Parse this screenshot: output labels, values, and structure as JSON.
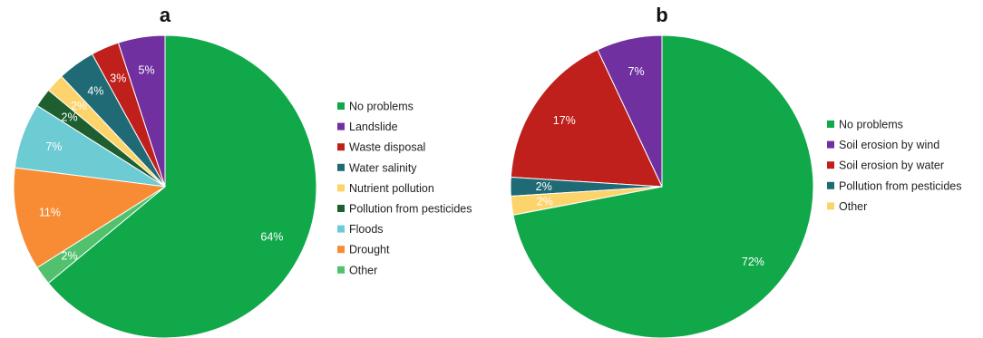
{
  "chart_data": [
    {
      "type": "pie",
      "title": "a",
      "categories": [
        "No problems",
        "Landslide",
        "Waste disposal",
        "Water salinity",
        "Nutrient pollution",
        "Pollution from pesticides",
        "Floods",
        "Drought",
        "Other"
      ],
      "values": [
        64,
        5,
        3,
        4,
        2,
        2,
        7,
        11,
        2
      ],
      "labels": [
        "64%",
        "5%",
        "3%",
        "4%",
        "2%",
        "2%",
        "7%",
        "11%",
        "2%"
      ],
      "colors": [
        "#11a84a",
        "#7030a0",
        "#c0201b",
        "#1f6a75",
        "#fdd46b",
        "#1e5e2f",
        "#6dcbd4",
        "#f88c34",
        "#52c16e"
      ],
      "legend": "right"
    },
    {
      "type": "pie",
      "title": "b",
      "categories": [
        "No problems",
        "Soil erosion by wind",
        "Soil erosion by water",
        "Pollution from pesticides",
        "Other"
      ],
      "values": [
        72,
        7,
        17,
        2,
        2
      ],
      "labels": [
        "72%",
        "7%",
        "17%",
        "2%",
        "2%"
      ],
      "colors": [
        "#11a84a",
        "#7030a0",
        "#c0201b",
        "#1f6a75",
        "#fdd46b"
      ],
      "legend": "right"
    }
  ]
}
